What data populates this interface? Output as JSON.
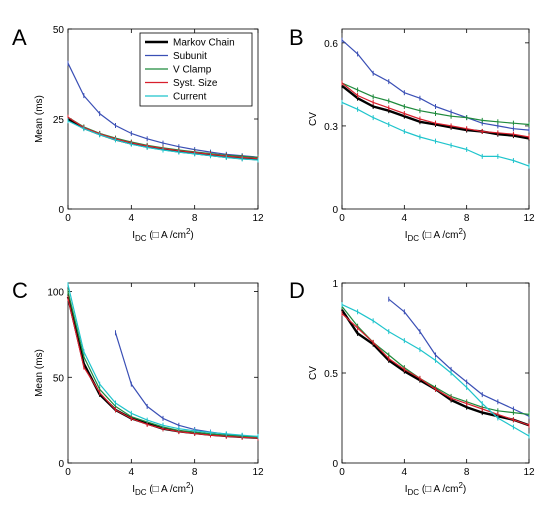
{
  "legend": [
    {
      "name": "Markov Chain",
      "color": "#000000"
    },
    {
      "name": "Subunit",
      "color": "#3a4fb5"
    },
    {
      "name": "V Clamp",
      "color": "#1e8a3c"
    },
    {
      "name": "Syst. Size",
      "color": "#d81f2c"
    },
    {
      "name": "Current",
      "color": "#1fc4cc"
    }
  ],
  "chart_data": [
    {
      "panel": "A",
      "type": "line",
      "xlabel": "I_DC (□ A /cm²)",
      "ylabel": "Mean (ms)",
      "xlim": [
        0,
        12
      ],
      "ylim": [
        0,
        50
      ],
      "xticks": [
        0,
        4,
        8,
        12
      ],
      "yticks": [
        0,
        25,
        50
      ],
      "grid": false,
      "legend": "top-right",
      "x": [
        0,
        1,
        2,
        3,
        4,
        5,
        6,
        7,
        8,
        9,
        10,
        11,
        12
      ],
      "series": [
        {
          "name": "Markov Chain",
          "values": [
            25,
            22.5,
            20.8,
            19.3,
            18.2,
            17.3,
            16.6,
            16.0,
            15.5,
            15.0,
            14.5,
            14.1,
            13.8
          ]
        },
        {
          "name": "Subunit",
          "values": [
            40.5,
            31.5,
            26.5,
            23.2,
            21.0,
            19.5,
            18.3,
            17.3,
            16.5,
            15.8,
            15.2,
            14.8,
            14.4
          ]
        },
        {
          "name": "V Clamp",
          "values": [
            25.5,
            22.8,
            21.0,
            19.7,
            18.6,
            17.7,
            17.0,
            16.4,
            15.9,
            15.4,
            14.9,
            14.6,
            14.3
          ]
        },
        {
          "name": "Syst. Size",
          "values": [
            25.5,
            22.6,
            20.9,
            19.5,
            18.4,
            17.5,
            16.8,
            16.2,
            15.7,
            15.2,
            14.7,
            14.3,
            14.0
          ]
        },
        {
          "name": "Current",
          "values": [
            24.5,
            22.3,
            20.6,
            19.2,
            18.0,
            17.1,
            16.4,
            15.8,
            15.3,
            14.8,
            14.3,
            13.9,
            13.6
          ]
        }
      ]
    },
    {
      "panel": "B",
      "type": "line",
      "xlabel": "I_DC (□ A /cm²)",
      "ylabel": "CV",
      "xlim": [
        0,
        12
      ],
      "ylim": [
        0,
        0.65
      ],
      "xticks": [
        0,
        4,
        8,
        12
      ],
      "yticks": [
        0,
        0.3,
        0.6
      ],
      "grid": false,
      "x": [
        0,
        1,
        2,
        3,
        4,
        5,
        6,
        7,
        8,
        9,
        10,
        11,
        12
      ],
      "series": [
        {
          "name": "Markov Chain",
          "values": [
            0.445,
            0.4,
            0.37,
            0.355,
            0.335,
            0.315,
            0.305,
            0.295,
            0.285,
            0.28,
            0.27,
            0.265,
            0.255
          ]
        },
        {
          "name": "Subunit",
          "values": [
            0.61,
            0.56,
            0.49,
            0.46,
            0.42,
            0.4,
            0.37,
            0.35,
            0.33,
            0.31,
            0.3,
            0.29,
            0.285
          ]
        },
        {
          "name": "V Clamp",
          "values": [
            0.455,
            0.43,
            0.405,
            0.39,
            0.37,
            0.355,
            0.345,
            0.335,
            0.33,
            0.32,
            0.315,
            0.31,
            0.305
          ]
        },
        {
          "name": "Syst. Size",
          "values": [
            0.455,
            0.41,
            0.385,
            0.365,
            0.345,
            0.325,
            0.31,
            0.3,
            0.29,
            0.28,
            0.275,
            0.27,
            0.26
          ]
        },
        {
          "name": "Current",
          "values": [
            0.385,
            0.36,
            0.33,
            0.305,
            0.28,
            0.26,
            0.245,
            0.23,
            0.215,
            0.19,
            0.19,
            0.175,
            0.155
          ]
        }
      ]
    },
    {
      "panel": "C",
      "type": "line",
      "xlabel": "I_DC (□ A /cm²)",
      "ylabel": "Mean (ms)",
      "xlim": [
        0,
        12
      ],
      "ylim": [
        0,
        105
      ],
      "xticks": [
        0,
        4,
        8,
        12
      ],
      "yticks": [
        0,
        50,
        100
      ],
      "grid": false,
      "series": [
        {
          "name": "Markov Chain",
          "x": [
            0,
            1,
            2,
            3,
            4,
            5,
            6,
            7,
            8,
            9,
            10,
            11,
            12
          ],
          "values": [
            97,
            58,
            40,
            31,
            26,
            23,
            20,
            18.5,
            17.5,
            16.5,
            15.8,
            15.2,
            14.7
          ]
        },
        {
          "name": "Subunit",
          "x": [
            3,
            4,
            5,
            6,
            7,
            8,
            9,
            10,
            11,
            12
          ],
          "values": [
            76,
            46,
            33,
            26,
            22,
            19.5,
            18,
            16.8,
            16,
            15.3
          ]
        },
        {
          "name": "V Clamp",
          "x": [
            0,
            1,
            2,
            3,
            4,
            5,
            6,
            7,
            8,
            9,
            10,
            11,
            12
          ],
          "values": [
            100,
            62,
            43,
            33,
            27,
            24,
            21,
            19,
            18,
            17,
            16.2,
            15.6,
            15
          ]
        },
        {
          "name": "Syst. Size",
          "x": [
            0,
            1,
            2,
            3,
            4,
            5,
            6,
            7,
            8,
            9,
            10,
            11,
            12
          ],
          "values": [
            96,
            56,
            41,
            31,
            26,
            22.5,
            20,
            18.3,
            17.2,
            16.3,
            15.6,
            15,
            14.5
          ]
        },
        {
          "name": "Current",
          "x": [
            0,
            1,
            2,
            3,
            4,
            5,
            6,
            7,
            8,
            9,
            10,
            11,
            12
          ],
          "values": [
            104,
            65,
            46,
            35,
            29,
            25,
            22,
            20,
            18.8,
            17.8,
            17,
            16.2,
            15.5
          ]
        }
      ]
    },
    {
      "panel": "D",
      "type": "line",
      "xlabel": "I_DC (□ A /cm²)",
      "ylabel": "CV",
      "xlim": [
        0,
        12
      ],
      "ylim": [
        0,
        1
      ],
      "xticks": [
        0,
        4,
        8,
        12
      ],
      "yticks": [
        0,
        0.5,
        1
      ],
      "grid": false,
      "series": [
        {
          "name": "Markov Chain",
          "x": [
            0,
            1,
            2,
            3,
            4,
            5,
            6,
            7,
            8,
            9,
            10,
            11,
            12
          ],
          "values": [
            0.85,
            0.72,
            0.66,
            0.57,
            0.51,
            0.46,
            0.41,
            0.35,
            0.31,
            0.28,
            0.26,
            0.24,
            0.21
          ]
        },
        {
          "name": "Subunit",
          "x": [
            3,
            4,
            5,
            6,
            7,
            8,
            9,
            10,
            11,
            12
          ],
          "values": [
            0.91,
            0.84,
            0.73,
            0.6,
            0.52,
            0.45,
            0.38,
            0.34,
            0.3,
            0.26
          ]
        },
        {
          "name": "V Clamp",
          "x": [
            0,
            1,
            2,
            3,
            4,
            5,
            6,
            7,
            8,
            9,
            10,
            11,
            12
          ],
          "values": [
            0.87,
            0.76,
            0.67,
            0.6,
            0.53,
            0.47,
            0.42,
            0.37,
            0.34,
            0.31,
            0.29,
            0.28,
            0.27
          ]
        },
        {
          "name": "Syst. Size",
          "x": [
            0,
            1,
            2,
            3,
            4,
            5,
            6,
            7,
            8,
            9,
            10,
            11,
            12
          ],
          "values": [
            0.83,
            0.75,
            0.67,
            0.58,
            0.52,
            0.47,
            0.41,
            0.36,
            0.33,
            0.3,
            0.27,
            0.24,
            0.21
          ]
        },
        {
          "name": "Current",
          "x": [
            0,
            1,
            2,
            3,
            4,
            5,
            6,
            7,
            8,
            9,
            10,
            11,
            12
          ],
          "values": [
            0.88,
            0.84,
            0.79,
            0.73,
            0.68,
            0.63,
            0.57,
            0.5,
            0.42,
            0.33,
            0.25,
            0.2,
            0.15
          ]
        }
      ]
    }
  ]
}
